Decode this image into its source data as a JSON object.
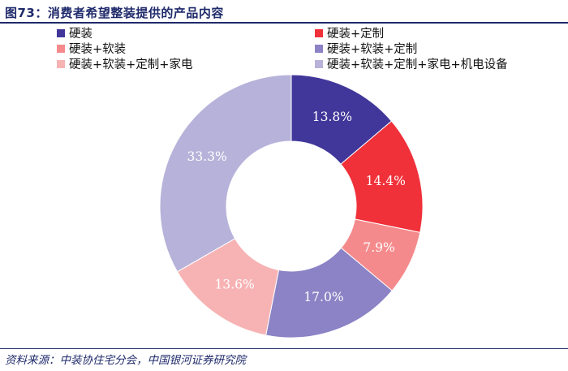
{
  "header": {
    "title": "图73：消费者希望整装提供的产品内容"
  },
  "chart_data": {
    "type": "pie",
    "donut": true,
    "title": "图73：消费者希望整装提供的产品内容",
    "categories": [
      "硬装",
      "硬装+定制",
      "硬装+软装",
      "硬装+软装+定制",
      "硬装+软装+定制+家电",
      "硬装+软装+定制+家电+机电设备"
    ],
    "values": [
      13.8,
      14.4,
      7.9,
      17.0,
      13.6,
      33.3
    ],
    "labels": [
      "13.8%",
      "14.4%",
      "7.9%",
      "17.0%",
      "13.6%",
      "33.3%"
    ],
    "colors": [
      "#41379a",
      "#f0313a",
      "#f58a8c",
      "#8b83c5",
      "#f7b3b4",
      "#b7b2d9"
    ],
    "legend_position": "top"
  },
  "footer": {
    "source": "资料来源：中装协住宅分会，中国银河证券研究院"
  }
}
